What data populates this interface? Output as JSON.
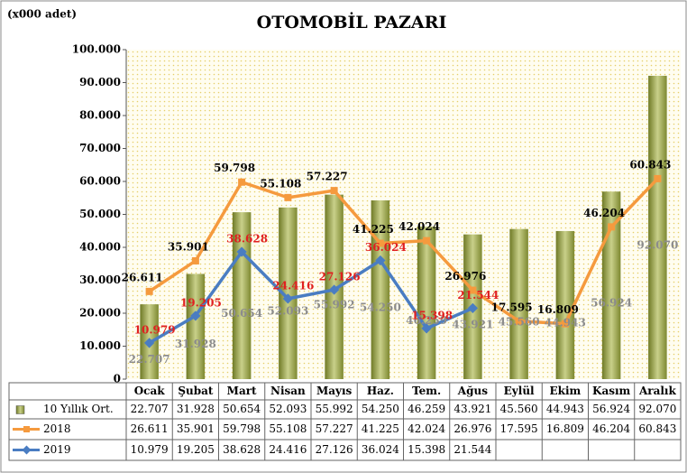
{
  "chart_data": {
    "type": "bar-line",
    "title": "OTOMOBİL PAZARI",
    "unit_label": "(x000 adet)",
    "categories": [
      "Ocak",
      "Şubat",
      "Mart",
      "Nisan",
      "Mayıs",
      "Haz.",
      "Tem.",
      "Ağus",
      "Eylül",
      "Ekim",
      "Kasım",
      "Aralık"
    ],
    "series": [
      {
        "name": "10 Yıllık Ort.",
        "type": "bar",
        "color": "#9aa446",
        "values": [
          22707,
          31928,
          50654,
          52093,
          55992,
          54250,
          46259,
          43921,
          45560,
          44943,
          56924,
          92070
        ],
        "value_labels": [
          "22.707",
          "31.928",
          "50.654",
          "52.093",
          "55.992",
          "54.250",
          "46.259",
          "43.921",
          "45.560",
          "44.943",
          "56.924",
          "92.070"
        ]
      },
      {
        "name": "2018",
        "type": "line",
        "color": "#f59a3e",
        "values": [
          26611,
          35901,
          59798,
          55108,
          57227,
          41225,
          42024,
          26976,
          17595,
          16809,
          46204,
          60843
        ],
        "value_labels": [
          "26.611",
          "35.901",
          "59.798",
          "55.108",
          "57.227",
          "41.225",
          "42.024",
          "26.976",
          "17.595",
          "16.809",
          "46.204",
          "60.843"
        ]
      },
      {
        "name": "2019",
        "type": "line",
        "color": "#4a7dc2",
        "values": [
          10979,
          19205,
          38628,
          24416,
          27126,
          36024,
          15398,
          21544,
          null,
          null,
          null,
          null
        ],
        "value_labels": [
          "10.979",
          "19.205",
          "38.628",
          "24.416",
          "27.126",
          "36.024",
          "15.398",
          "21.544",
          null,
          null,
          null,
          null
        ]
      }
    ],
    "ylim": [
      0,
      100000
    ],
    "yticks": [
      {
        "value": 0,
        "label": "0"
      },
      {
        "value": 10000,
        "label": "10.000"
      },
      {
        "value": 20000,
        "label": "20.000"
      },
      {
        "value": 30000,
        "label": "30.000"
      },
      {
        "value": 40000,
        "label": "40.000"
      },
      {
        "value": 50000,
        "label": "50.000"
      },
      {
        "value": 60000,
        "label": "60.000"
      },
      {
        "value": 70000,
        "label": "70.000"
      },
      {
        "value": 80000,
        "label": "80.000"
      },
      {
        "value": 90000,
        "label": "90.000"
      },
      {
        "value": 100000,
        "label": "100.000"
      }
    ]
  }
}
